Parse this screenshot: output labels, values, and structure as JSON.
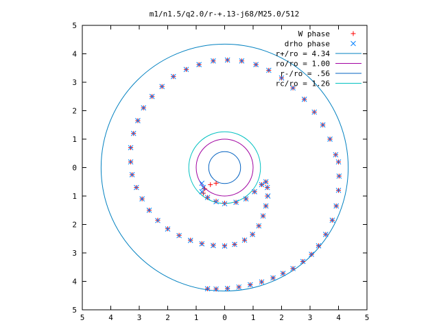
{
  "chart_data": {
    "type": "scatter",
    "title": "m1/n1.5/q2.0/r-+.13-j68/M25.0/512",
    "xlabel": "",
    "ylabel": "",
    "xlim": [
      -5,
      5
    ],
    "ylim": [
      -5,
      5
    ],
    "xticks": [
      -5,
      -4,
      -3,
      -2,
      -1,
      0,
      1,
      2,
      3,
      4,
      5
    ],
    "yticks": [
      -5,
      -4,
      -3,
      -2,
      -1,
      0,
      1,
      2,
      3,
      4,
      5
    ],
    "xtick_labels": [
      "5",
      "4",
      "3",
      "2",
      "1",
      "0",
      "1",
      "2",
      "3",
      "4",
      "5"
    ],
    "ytick_labels": [
      "5",
      "4",
      "3",
      "2",
      "1",
      "0",
      "1",
      "2",
      "3",
      "4",
      "5"
    ],
    "grid": false,
    "legend_position": "top-right",
    "series": [
      {
        "name": "W phase",
        "kind": "points",
        "marker": "plus",
        "color": "#ff0000",
        "points": [
          [
            -0.3,
            -0.55
          ],
          [
            -0.5,
            -0.6
          ],
          [
            -0.7,
            -0.75
          ],
          [
            -0.75,
            -0.9
          ],
          [
            -0.6,
            -1.05
          ],
          [
            -0.3,
            -1.18
          ],
          [
            0.0,
            -1.25
          ],
          [
            0.4,
            -1.22
          ],
          [
            0.75,
            -1.1
          ],
          [
            1.05,
            -0.85
          ],
          [
            1.3,
            -0.6
          ],
          [
            1.45,
            -0.5
          ],
          [
            1.5,
            -0.7
          ],
          [
            1.5,
            -1.0
          ],
          [
            1.45,
            -1.35
          ],
          [
            1.35,
            -1.7
          ],
          [
            1.2,
            -2.05
          ],
          [
            0.98,
            -2.35
          ],
          [
            0.7,
            -2.55
          ],
          [
            0.35,
            -2.7
          ],
          [
            0.0,
            -2.75
          ],
          [
            -0.4,
            -2.73
          ],
          [
            -0.8,
            -2.67
          ],
          [
            -1.2,
            -2.55
          ],
          [
            -1.6,
            -2.38
          ],
          [
            -2.0,
            -2.15
          ],
          [
            -2.35,
            -1.85
          ],
          [
            -2.65,
            -1.5
          ],
          [
            -2.9,
            -1.1
          ],
          [
            -3.1,
            -0.7
          ],
          [
            -3.25,
            -0.25
          ],
          [
            -3.3,
            0.2
          ],
          [
            -3.3,
            0.7
          ],
          [
            -3.2,
            1.2
          ],
          [
            -3.05,
            1.65
          ],
          [
            -2.85,
            2.1
          ],
          [
            -2.55,
            2.5
          ],
          [
            -2.2,
            2.85
          ],
          [
            -1.8,
            3.2
          ],
          [
            -1.35,
            3.45
          ],
          [
            -0.9,
            3.62
          ],
          [
            -0.4,
            3.75
          ],
          [
            0.1,
            3.78
          ],
          [
            0.6,
            3.75
          ],
          [
            1.1,
            3.62
          ],
          [
            1.55,
            3.42
          ],
          [
            2.0,
            3.15
          ],
          [
            2.4,
            2.8
          ],
          [
            2.8,
            2.4
          ],
          [
            3.15,
            1.95
          ],
          [
            3.45,
            1.5
          ],
          [
            3.7,
            1.0
          ],
          [
            3.9,
            0.45
          ],
          [
            4.0,
            0.2
          ],
          [
            4.02,
            -0.3
          ],
          [
            4.0,
            -0.8
          ],
          [
            3.92,
            -1.35
          ],
          [
            3.78,
            -1.85
          ],
          [
            3.55,
            -2.35
          ],
          [
            3.3,
            -2.75
          ],
          [
            3.05,
            -3.05
          ],
          [
            2.75,
            -3.3
          ],
          [
            2.4,
            -3.55
          ],
          [
            2.05,
            -3.72
          ],
          [
            1.7,
            -3.88
          ],
          [
            1.3,
            -4.02
          ],
          [
            0.9,
            -4.12
          ],
          [
            0.5,
            -4.2
          ],
          [
            0.1,
            -4.25
          ],
          [
            -0.3,
            -4.27
          ],
          [
            -0.6,
            -4.26
          ]
        ]
      },
      {
        "name": "drho phase",
        "kind": "points",
        "marker": "cross",
        "color": "#0080ff",
        "points": [
          [
            -0.8,
            -0.55
          ],
          [
            -0.75,
            -0.7
          ],
          [
            -0.8,
            -0.85
          ],
          [
            -0.6,
            -1.05
          ],
          [
            -0.3,
            -1.2
          ],
          [
            0.0,
            -1.27
          ],
          [
            0.4,
            -1.22
          ],
          [
            0.75,
            -1.1
          ],
          [
            1.05,
            -0.85
          ],
          [
            1.3,
            -0.6
          ],
          [
            1.45,
            -0.5
          ],
          [
            1.5,
            -0.7
          ],
          [
            1.52,
            -1.0
          ],
          [
            1.45,
            -1.35
          ],
          [
            1.35,
            -1.7
          ],
          [
            1.2,
            -2.05
          ],
          [
            0.98,
            -2.35
          ],
          [
            0.7,
            -2.55
          ],
          [
            0.35,
            -2.7
          ],
          [
            0.0,
            -2.76
          ],
          [
            -0.4,
            -2.74
          ],
          [
            -0.8,
            -2.68
          ],
          [
            -1.2,
            -2.56
          ],
          [
            -1.6,
            -2.39
          ],
          [
            -2.0,
            -2.16
          ],
          [
            -2.35,
            -1.86
          ],
          [
            -2.65,
            -1.5
          ],
          [
            -2.9,
            -1.1
          ],
          [
            -3.1,
            -0.7
          ],
          [
            -3.25,
            -0.25
          ],
          [
            -3.3,
            0.2
          ],
          [
            -3.3,
            0.7
          ],
          [
            -3.2,
            1.2
          ],
          [
            -3.05,
            1.65
          ],
          [
            -2.85,
            2.1
          ],
          [
            -2.55,
            2.5
          ],
          [
            -2.2,
            2.85
          ],
          [
            -1.8,
            3.2
          ],
          [
            -1.35,
            3.45
          ],
          [
            -0.9,
            3.62
          ],
          [
            -0.4,
            3.75
          ],
          [
            0.1,
            3.78
          ],
          [
            0.6,
            3.75
          ],
          [
            1.1,
            3.62
          ],
          [
            1.55,
            3.42
          ],
          [
            2.0,
            3.15
          ],
          [
            2.4,
            2.8
          ],
          [
            2.8,
            2.4
          ],
          [
            3.15,
            1.95
          ],
          [
            3.45,
            1.5
          ],
          [
            3.7,
            1.0
          ],
          [
            3.9,
            0.45
          ],
          [
            4.0,
            0.2
          ],
          [
            4.02,
            -0.3
          ],
          [
            4.0,
            -0.8
          ],
          [
            3.92,
            -1.35
          ],
          [
            3.78,
            -1.85
          ],
          [
            3.55,
            -2.35
          ],
          [
            3.3,
            -2.75
          ],
          [
            3.05,
            -3.05
          ],
          [
            2.75,
            -3.3
          ],
          [
            2.4,
            -3.55
          ],
          [
            2.05,
            -3.72
          ],
          [
            1.7,
            -3.88
          ],
          [
            1.3,
            -4.02
          ],
          [
            0.9,
            -4.12
          ],
          [
            0.5,
            -4.2
          ],
          [
            0.1,
            -4.25
          ],
          [
            -0.3,
            -4.27
          ],
          [
            -0.6,
            -4.26
          ]
        ]
      },
      {
        "name": "r+/ro = 4.34",
        "kind": "circle",
        "radius": 4.34,
        "color": "#0080c0"
      },
      {
        "name": "ro/ro = 1.00",
        "kind": "circle",
        "radius": 1.0,
        "color": "#a000a0"
      },
      {
        "name": "r-/ro = .56",
        "kind": "circle",
        "radius": 0.56,
        "color": "#0060c0"
      },
      {
        "name": "rc/ro = 1.26",
        "kind": "circle",
        "radius": 1.26,
        "color": "#00c0c0"
      }
    ]
  }
}
